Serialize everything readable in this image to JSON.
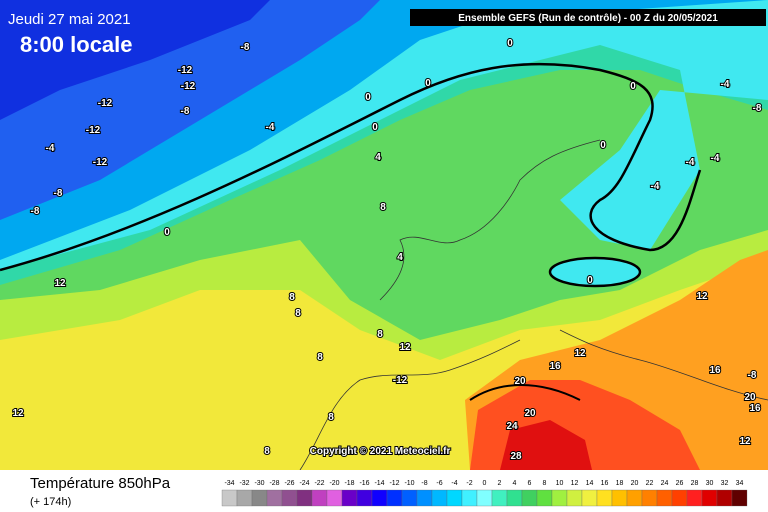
{
  "header": {
    "date": "Jeudi 27 mai 2021",
    "time": "8:00 locale",
    "model": "Ensemble GEFS  (Run de contrôle)  -  00 Z du 20/05/2021"
  },
  "footer": {
    "title": "Température 850hPa",
    "lead": "(+ 174h)"
  },
  "copyright": "Copyright © 2021 Meteociel.fr",
  "legend": {
    "ticks": [
      -34,
      -32,
      -30,
      -28,
      -26,
      -24,
      -22,
      -20,
      -18,
      -16,
      -14,
      -12,
      -10,
      -8,
      -6,
      -4,
      -2,
      0,
      2,
      4,
      6,
      8,
      10,
      12,
      14,
      16,
      18,
      20,
      22,
      24,
      26,
      28,
      30,
      32,
      34
    ],
    "colors": [
      "#c8c8c8",
      "#a8a8a8",
      "#888888",
      "#a070a0",
      "#905090",
      "#803080",
      "#c040c0",
      "#e060e0",
      "#6a00c8",
      "#4000e0",
      "#1000ff",
      "#0030ff",
      "#0060ff",
      "#0090ff",
      "#00b8ff",
      "#00d8ff",
      "#40f0ff",
      "#80ffff",
      "#40f0c0",
      "#30e090",
      "#40d060",
      "#60e040",
      "#a0f040",
      "#d0f040",
      "#f0f040",
      "#ffe020",
      "#ffc000",
      "#ffa000",
      "#ff8000",
      "#ff6000",
      "#ff4000",
      "#ff2020",
      "#e00000",
      "#b00000",
      "#600000"
    ]
  },
  "contour_labels": [
    "-8",
    "-12",
    "-12",
    "-12",
    "-8",
    "-12",
    "-4",
    "-12",
    "-8",
    "-8",
    "-4",
    "0",
    "0",
    "0",
    "0",
    "4",
    "0",
    "8",
    "4",
    "12",
    "8",
    "8",
    "8",
    "8",
    "12",
    "-12",
    "12",
    "12",
    "16",
    "16",
    "12",
    "20",
    "20",
    "24",
    "28",
    "12",
    "20",
    "16",
    "-4",
    "-4",
    "-4",
    "-4",
    "-8",
    "0",
    "0",
    "0",
    "-8",
    "8",
    "8"
  ]
}
